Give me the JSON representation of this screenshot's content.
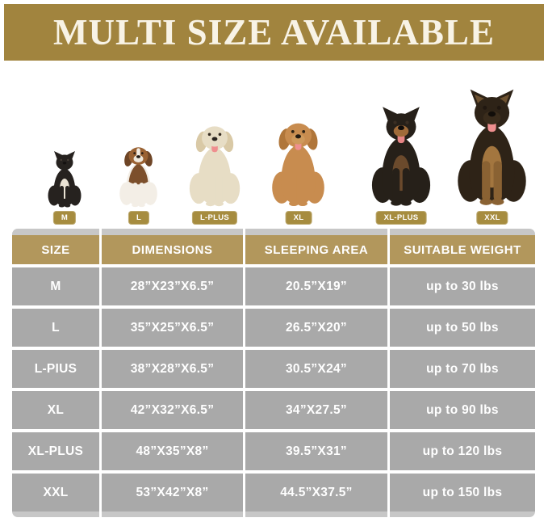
{
  "banner": {
    "title": "MULTI SIZE AVAILABLE"
  },
  "dogs": [
    {
      "label": "M",
      "breed": "french-bulldog"
    },
    {
      "label": "L",
      "breed": "beagle"
    },
    {
      "label": "L-PLUS",
      "breed": "labrador-puppy"
    },
    {
      "label": "XL",
      "breed": "golden-retriever"
    },
    {
      "label": "XL-PLUS",
      "breed": "doberman"
    },
    {
      "label": "XXL",
      "breed": "german-shepherd"
    }
  ],
  "chart_data": {
    "type": "table",
    "title": "MULTI SIZE AVAILABLE",
    "columns": [
      "SIZE",
      "DIMENSIONS",
      "SLEEPING AREA",
      "SUITABLE WEIGHT"
    ],
    "rows": [
      [
        "M",
        "28”X23”X6.5”",
        "20.5”X19”",
        "up to 30 lbs"
      ],
      [
        "L",
        "35”X25”X6.5”",
        "26.5”X20”",
        "up to 50 lbs"
      ],
      [
        "L-PIUS",
        "38”X28”X6.5”",
        "30.5”X24”",
        "up to 70 lbs"
      ],
      [
        "XL",
        "42”X32”X6.5”",
        "34”X27.5”",
        "up to 90 lbs"
      ],
      [
        "XL-PLUS",
        "48”X35”X8”",
        "39.5”X31”",
        "up to 120 lbs"
      ],
      [
        "XXL",
        "53”X42”X8”",
        "44.5”X37.5”",
        "up to 150 lbs"
      ]
    ]
  },
  "colors": {
    "banner_gold": "#a1843e",
    "header_tan": "#b2975c",
    "row_gray": "#a9a9a9",
    "strip_gray": "#c7c7c7",
    "badge_gold": "#a68c3f",
    "title_cream": "#f8f3e6",
    "text_white": "#ffffff"
  }
}
